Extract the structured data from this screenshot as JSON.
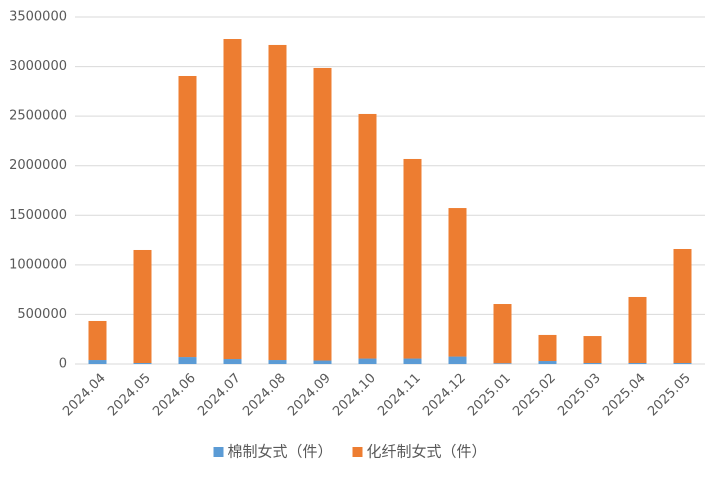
{
  "chart_data": {
    "type": "stacked-bar",
    "categories": [
      "2024.04",
      "2024.05",
      "2024.06",
      "2024.07",
      "2024.08",
      "2024.09",
      "2024.10",
      "2024.11",
      "2024.12",
      "2025.01",
      "2025.02",
      "2025.03",
      "2025.04",
      "2025.05"
    ],
    "series": [
      {
        "name": "棉制女式（件）",
        "color": "#5b9bd5",
        "values": [
          40000,
          10000,
          70000,
          50000,
          40000,
          35000,
          55000,
          55000,
          75000,
          8000,
          30000,
          10000,
          10000,
          10000
        ]
      },
      {
        "name": "化纤制女式（件）",
        "color": "#ed7d31",
        "values": [
          394000,
          1140000,
          2835000,
          3228000,
          3178000,
          2951000,
          2467000,
          2013000,
          1498000,
          597000,
          263000,
          272000,
          666000,
          1150000
        ]
      }
    ],
    "ylim": [
      0,
      3500000
    ],
    "yticks": [
      0,
      500000,
      1000000,
      1500000,
      2000000,
      2500000,
      3000000,
      3500000
    ],
    "grid": true,
    "legend": "bottom"
  }
}
